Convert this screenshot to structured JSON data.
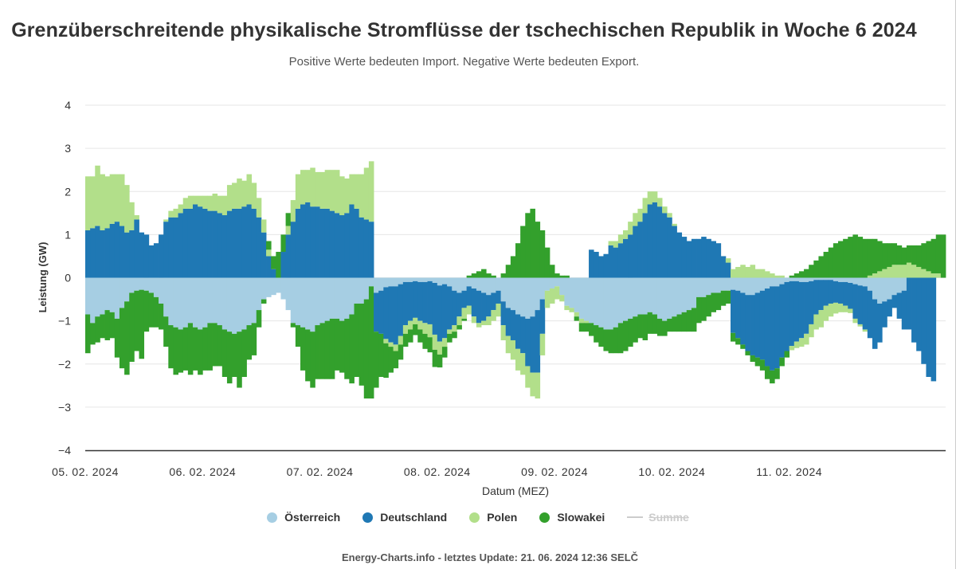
{
  "title": "Grenzüberschreitende physikalische Stromflüsse der tschechischen Republik in Woche 6 2024",
  "subtitle": "Positive Werte bedeuten Import. Negative Werte bedeuten Export.",
  "credits": "Energy-Charts.info - letztes Update: 21. 06. 2024 12:36 SELČ",
  "legend": {
    "at": "Österreich",
    "de": "Deutschland",
    "pl": "Polen",
    "sk": "Slowakei",
    "sum": "Summe"
  },
  "colors": {
    "at": "#a6cee3",
    "de": "#1f78b4",
    "pl": "#b2df8a",
    "sk": "#33a02c",
    "grid": "#e6e6e6",
    "axis": "#333333"
  },
  "chart_data": {
    "type": "bar",
    "stacking": "normal",
    "xlabel": "Datum (MEZ)",
    "ylabel": "Leistung (GW)",
    "ylim": [
      -4,
      4
    ],
    "yticks": [
      "4",
      "3",
      "2",
      "1",
      "0",
      "−1",
      "−2",
      "−3",
      "−4"
    ],
    "xticks": [
      "05. 02. 2024",
      "06. 02. 2024",
      "07. 02. 2024",
      "08. 02. 2024",
      "09. 02. 2024",
      "10. 02. 2024",
      "11. 02. 2024"
    ],
    "interval": "hourly",
    "hidden_series": [
      "Summe"
    ],
    "series": [
      {
        "name": "Österreich",
        "key": "at",
        "values": [
          -0.85,
          -1.05,
          -0.9,
          -0.85,
          -0.75,
          -0.8,
          -0.95,
          -0.7,
          -0.55,
          -0.35,
          -0.3,
          -0.28,
          -0.3,
          -0.35,
          -0.45,
          -0.6,
          -0.9,
          -1.1,
          -1.15,
          -1.2,
          -1.15,
          -1.05,
          -1.15,
          -1.2,
          -1.15,
          -1.05,
          -1.05,
          -1.1,
          -1.2,
          -1.25,
          -1.3,
          -1.25,
          -1.2,
          -1.1,
          -1.05,
          -0.75,
          -0.5,
          -0.45,
          -0.4,
          -0.35,
          -0.5,
          -0.75,
          -1.05,
          -1.1,
          -1.15,
          -1.2,
          -1.25,
          -1.1,
          -1.05,
          -1.0,
          -0.95,
          -0.95,
          -1.0,
          -0.95,
          -0.85,
          -0.6,
          -0.6,
          -0.5,
          -0.2,
          -0.35,
          -0.3,
          -0.22,
          -0.2,
          -0.2,
          -0.15,
          -0.1,
          -0.1,
          -0.08,
          -0.1,
          -0.1,
          -0.08,
          -0.12,
          -0.18,
          -0.15,
          -0.2,
          -0.3,
          -0.35,
          -0.3,
          -0.2,
          -0.25,
          -0.3,
          -0.35,
          -0.4,
          -0.35,
          -0.3,
          -0.55,
          -0.7,
          -0.75,
          -0.85,
          -0.9,
          -0.95,
          -0.9,
          -0.75,
          -0.5,
          -0.3,
          -0.25,
          -0.2,
          -0.4,
          -0.65,
          -0.7,
          -0.8,
          -0.95,
          -1.0,
          -1.05,
          -1.1,
          -1.15,
          -1.2,
          -1.2,
          -1.15,
          -1.05,
          -1.0,
          -0.95,
          -0.9,
          -0.85,
          -0.85,
          -0.8,
          -0.85,
          -0.95,
          -1.0,
          -0.95,
          -0.9,
          -0.85,
          -0.8,
          -0.75,
          -0.7,
          -0.45,
          -0.45,
          -0.4,
          -0.35,
          -0.35,
          -0.3,
          -0.3,
          -0.28,
          -0.3,
          -0.35,
          -0.4,
          -0.4,
          -0.35,
          -0.3,
          -0.25,
          -0.2,
          -0.2,
          -0.15,
          -0.1,
          -0.08,
          -0.08,
          -0.1,
          -0.1,
          -0.08,
          -0.05,
          -0.05,
          -0.05,
          -0.05,
          -0.08,
          -0.1,
          -0.1,
          -0.12,
          -0.15,
          -0.18,
          -0.2,
          -0.3,
          -0.5,
          -0.6,
          -0.55,
          -0.5,
          -0.4,
          -0.35,
          -0.3
        ]
      },
      {
        "name": "Deutschland",
        "key": "de",
        "values": [
          1.1,
          1.15,
          1.2,
          1.1,
          1.15,
          1.25,
          1.3,
          1.2,
          1.05,
          1.1,
          1.35,
          1.05,
          1.0,
          0.75,
          0.8,
          1.0,
          1.3,
          1.4,
          1.4,
          1.5,
          1.6,
          1.6,
          1.7,
          1.65,
          1.6,
          1.55,
          1.55,
          1.5,
          1.45,
          1.55,
          1.6,
          1.6,
          1.65,
          1.7,
          1.6,
          1.4,
          1.05,
          0.5,
          0.2,
          0.0,
          0.6,
          1.0,
          1.3,
          1.6,
          1.7,
          1.75,
          1.65,
          1.65,
          1.6,
          1.6,
          1.55,
          1.5,
          1.45,
          1.5,
          1.7,
          1.6,
          1.4,
          1.35,
          1.3,
          -0.9,
          -1.0,
          -1.2,
          -1.3,
          -1.35,
          -1.2,
          -1.0,
          -0.9,
          -0.85,
          -0.9,
          -0.95,
          -1.0,
          -1.2,
          -1.3,
          -1.25,
          -1.0,
          -0.8,
          -0.55,
          -0.4,
          -0.45,
          -0.65,
          -0.75,
          -0.65,
          -0.5,
          -0.4,
          -0.3,
          -0.55,
          -0.65,
          -0.7,
          -0.8,
          -0.85,
          -1.1,
          -1.3,
          -1.45,
          -0.8,
          0.0,
          0.0,
          0.0,
          0.0,
          0.0,
          0.0,
          0.0,
          0.0,
          0.0,
          0.65,
          0.6,
          0.5,
          0.55,
          0.75,
          0.7,
          0.8,
          0.9,
          1.0,
          1.2,
          1.3,
          1.5,
          1.7,
          1.75,
          1.65,
          1.5,
          1.4,
          1.2,
          1.05,
          0.95,
          0.85,
          0.9,
          0.9,
          0.95,
          0.9,
          0.85,
          0.8,
          0.5,
          0.35,
          -1.0,
          -1.1,
          -1.2,
          -1.3,
          -1.4,
          -1.5,
          -1.6,
          -1.8,
          -1.95,
          -1.9,
          -1.7,
          -1.6,
          -1.5,
          -1.4,
          -1.3,
          -1.2,
          -1.0,
          -0.8,
          -0.7,
          -0.6,
          -0.55,
          -0.5,
          -0.5,
          -0.55,
          -0.6,
          -0.8,
          -0.9,
          -1.0,
          -1.1,
          -1.15,
          -0.9,
          -0.6,
          -0.4,
          -0.3,
          -0.6,
          -0.9,
          -1.2,
          -1.5,
          -1.7,
          -2.0,
          -2.3,
          -2.4
        ]
      },
      {
        "name": "Polen",
        "key": "pl",
        "values": [
          1.25,
          1.2,
          1.4,
          1.3,
          1.2,
          1.15,
          1.1,
          1.2,
          1.1,
          0.65,
          0.1,
          0.0,
          0.0,
          0.0,
          0.0,
          0.0,
          0.05,
          0.15,
          0.2,
          0.2,
          0.25,
          0.3,
          0.2,
          0.25,
          0.3,
          0.35,
          0.4,
          0.4,
          0.45,
          0.6,
          0.6,
          0.7,
          0.6,
          0.7,
          0.6,
          0.45,
          0.3,
          0.15,
          0.0,
          0.0,
          0.0,
          0.2,
          0.5,
          0.8,
          0.8,
          0.75,
          0.9,
          0.8,
          0.85,
          0.9,
          0.95,
          1.0,
          0.9,
          0.8,
          0.7,
          0.8,
          1.0,
          1.2,
          1.4,
          0.0,
          0.0,
          -0.1,
          -0.1,
          -0.15,
          -0.2,
          -0.2,
          -0.2,
          -0.15,
          -0.2,
          -0.25,
          -0.3,
          -0.35,
          -0.3,
          -0.2,
          -0.1,
          -0.15,
          -0.2,
          -0.25,
          -0.2,
          -0.15,
          -0.1,
          -0.1,
          -0.2,
          -0.25,
          -0.3,
          -0.35,
          -0.4,
          -0.45,
          -0.5,
          -0.5,
          -0.5,
          -0.55,
          -0.6,
          -0.5,
          -0.4,
          -0.35,
          -0.3,
          -0.15,
          -0.1,
          -0.1,
          -0.1,
          -0.1,
          -0.05,
          0.0,
          0.0,
          0.0,
          0.0,
          0.1,
          0.15,
          0.2,
          0.2,
          0.3,
          0.3,
          0.3,
          0.35,
          0.3,
          0.25,
          0.2,
          0.15,
          0.1,
          0.05,
          0.0,
          0.0,
          0.0,
          0.0,
          0.0,
          0.0,
          0.0,
          0.0,
          0.0,
          0.0,
          0.1,
          0.2,
          0.25,
          0.3,
          0.25,
          0.3,
          0.2,
          0.2,
          0.15,
          0.1,
          0.05,
          0.05,
          0.0,
          -0.1,
          -0.15,
          -0.2,
          -0.25,
          -0.3,
          -0.35,
          -0.4,
          -0.35,
          -0.3,
          -0.25,
          -0.2,
          -0.15,
          -0.1,
          -0.1,
          -0.05,
          -0.05,
          0.05,
          0.1,
          0.15,
          0.2,
          0.25,
          0.3,
          0.3,
          0.3,
          0.35,
          0.3,
          0.25,
          0.2,
          0.15,
          0.1,
          0.1
        ]
      },
      {
        "name": "Slowakei",
        "key": "sk",
        "values": [
          -0.9,
          -0.5,
          -0.6,
          -0.55,
          -0.7,
          -0.6,
          -0.9,
          -1.4,
          -1.7,
          -1.6,
          -1.4,
          -1.6,
          -0.95,
          -0.8,
          -0.7,
          -0.6,
          -0.7,
          -1.0,
          -1.1,
          -1.0,
          -1.0,
          -1.2,
          -1.0,
          -1.05,
          -1.0,
          -1.1,
          -1.0,
          -0.95,
          -1.1,
          -1.2,
          -1.0,
          -1.3,
          -1.1,
          -0.8,
          -0.75,
          -0.4,
          -0.1,
          0.2,
          0.3,
          0.6,
          0.4,
          0.3,
          -0.1,
          -0.5,
          -1.0,
          -1.2,
          -1.3,
          -1.25,
          -1.3,
          -1.35,
          -1.4,
          -1.2,
          -1.2,
          -1.4,
          -1.6,
          -1.7,
          -1.9,
          -2.3,
          -2.6,
          -1.3,
          -1.0,
          -0.8,
          -0.6,
          -0.4,
          -0.35,
          -0.3,
          -0.3,
          -0.25,
          -0.3,
          -0.35,
          -0.35,
          -0.4,
          -0.3,
          -0.25,
          -0.2,
          -0.15,
          -0.1,
          -0.05,
          0.05,
          0.1,
          0.15,
          0.2,
          0.1,
          0.05,
          0.0,
          0.1,
          0.3,
          0.5,
          0.8,
          1.2,
          1.5,
          1.6,
          1.3,
          1.1,
          0.7,
          0.3,
          0.1,
          0.05,
          0.05,
          0.0,
          -0.1,
          -0.2,
          -0.2,
          -0.3,
          -0.4,
          -0.45,
          -0.5,
          -0.55,
          -0.6,
          -0.7,
          -0.7,
          -0.65,
          -0.6,
          -0.55,
          -0.6,
          -0.5,
          -0.45,
          -0.4,
          -0.35,
          -0.3,
          -0.35,
          -0.4,
          -0.45,
          -0.5,
          -0.55,
          -0.6,
          -0.55,
          -0.5,
          -0.45,
          -0.4,
          -0.35,
          -0.3,
          -0.2,
          -0.15,
          -0.1,
          -0.1,
          -0.15,
          -0.2,
          -0.25,
          -0.3,
          -0.3,
          -0.25,
          -0.2,
          -0.15,
          0.05,
          0.1,
          0.15,
          0.2,
          0.3,
          0.4,
          0.5,
          0.6,
          0.7,
          0.8,
          0.85,
          0.9,
          0.95,
          1.0,
          0.95,
          0.9,
          0.85,
          0.8,
          0.7,
          0.6,
          0.55,
          0.5,
          0.45,
          0.4,
          0.4,
          0.45,
          0.5,
          0.6,
          0.7,
          0.8,
          0.9,
          1.0
        ]
      },
      {
        "name": "Summe",
        "key": "sum",
        "values": []
      }
    ]
  }
}
